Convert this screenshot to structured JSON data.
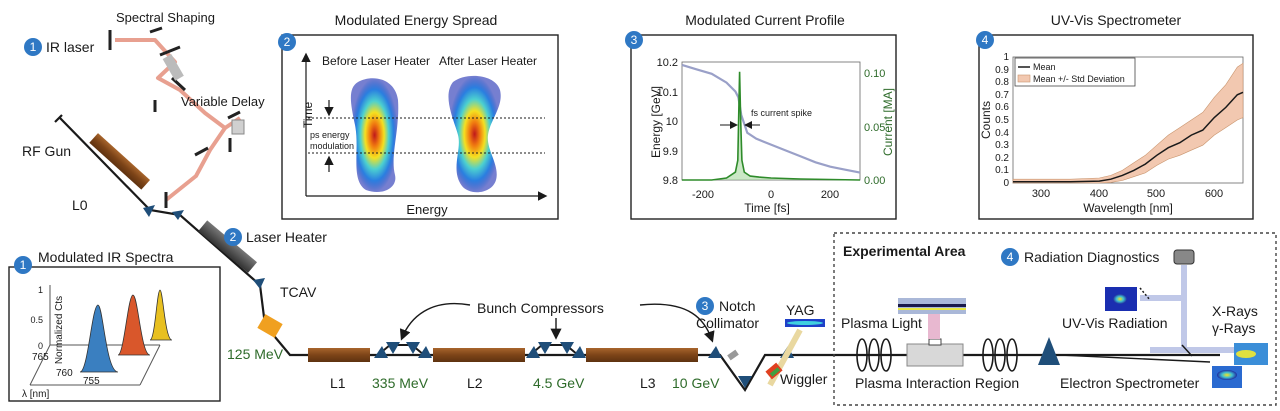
{
  "colors": {
    "beam": "#1a1a1a",
    "laser": "#e8a090",
    "linac": "#8b4e1e",
    "dipole": "#1f4e79",
    "badge": "#2f78c4",
    "energy_text": "#2e6b2a",
    "tcav": "#f0a020",
    "heater": "#555555"
  },
  "beamline": {
    "ir_laser_badge": "1",
    "ir_laser": "IR laser",
    "spectral_shaping": "Spectral Shaping",
    "variable_delay": "Variable Delay",
    "rf_gun": "RF Gun",
    "l0": "L0",
    "laser_heater_badge": "2",
    "laser_heater": "Laser Heater",
    "tcav": "TCAV",
    "e_125": "125 MeV",
    "l1": "L1",
    "e_335": "335 MeV",
    "l2": "L2",
    "e_4_5": "4.5 GeV",
    "l3": "L3",
    "e_10": "10 GeV",
    "bunch_compressors": "Bunch Compressors",
    "notch_badge": "3",
    "notch": "Notch",
    "collimator": "Collimator",
    "yag": "YAG",
    "wiggler": "Wiggler",
    "experimental_area": "Experimental Area",
    "plasma_light": "Plasma Light",
    "plasma_region": "Plasma Interaction Region",
    "radiation_badge": "4",
    "radiation_diagnostics": "Radiation Diagnostics",
    "uv_vis_radiation": "UV-Vis Radiation",
    "x_rays": "X-Rays",
    "gamma_rays": "γ-Rays",
    "electron_spectrometer": "Electron Spectrometer"
  },
  "panels": {
    "ir_spectra": {
      "badge": "1",
      "title": "Modulated IR Spectra",
      "ylabel": "Normalized Cts",
      "xlabel": "λ [nm]",
      "yticks": [
        "1",
        "0.5",
        "0"
      ],
      "xticks": [
        "765",
        "760",
        "755"
      ]
    },
    "energy_spread": {
      "badge": "2",
      "title": "Modulated Energy Spread",
      "before": "Before Laser Heater",
      "after": "After Laser Heater",
      "ylabel": "Time",
      "xlabel": "Energy",
      "annotation_line1": "ps energy",
      "annotation_line2": "modulation"
    },
    "current_profile": {
      "badge": "3",
      "title": "Modulated Current Profile",
      "ylabel_left": "Energy [GeV]",
      "ylabel_right": "Current [MA]",
      "xlabel": "Time [fs]",
      "annotation": "fs current spike",
      "yticks_left": [
        "10.2",
        "10.1",
        "10",
        "9.9",
        "9.8"
      ],
      "yticks_right": [
        "0.10",
        "0.05",
        "0.00"
      ],
      "xticks": [
        "-200",
        "0",
        "200"
      ]
    },
    "spectrometer": {
      "badge": "4",
      "title": "UV-Vis Spectrometer",
      "ylabel": "Counts",
      "xlabel": "Wavelength [nm]",
      "legend_mean": "Mean",
      "legend_band": "Mean +/- Std Deviation",
      "yticks": [
        "1",
        "0.9",
        "0.8",
        "0.7",
        "0.6",
        "0.5",
        "0.4",
        "0.3",
        "0.2",
        "0.1",
        "0"
      ],
      "xticks": [
        "300",
        "400",
        "500",
        "600"
      ]
    }
  },
  "chart_data": [
    {
      "type": "line",
      "title": "Modulated Current Profile",
      "xlabel": "Time [fs]",
      "ylabel": "Energy [GeV]",
      "y2label": "Current [MA]",
      "xlim": [
        -300,
        300
      ],
      "ylim": [
        9.8,
        10.2
      ],
      "y2lim": [
        0,
        0.12
      ],
      "series": [
        {
          "name": "",
          "axis": "left",
          "x": [
            -300,
            -250,
            -200,
            -150,
            -120,
            -110,
            -100,
            -80,
            -50,
            0,
            50,
            100,
            150,
            200,
            250,
            300
          ],
          "y": [
            10.19,
            10.175,
            10.16,
            10.13,
            10.1,
            10.08,
            10.02,
            9.96,
            9.94,
            9.92,
            9.9,
            9.88,
            9.86,
            9.845,
            9.835,
            9.825
          ]
        },
        {
          "name": "",
          "axis": "right",
          "x": [
            -300,
            -200,
            -150,
            -120,
            -112,
            -106,
            -102,
            -98,
            -90,
            -70,
            -40,
            0,
            100,
            200,
            300
          ],
          "y": [
            0,
            0,
            0.002,
            0.008,
            0.02,
            0.11,
            0.06,
            0.02,
            0.008,
            0.004,
            0.003,
            0.002,
            0.001,
            0.0005,
            0
          ]
        }
      ]
    },
    {
      "type": "line",
      "title": "UV-Vis Spectrometer",
      "xlabel": "Wavelength [nm]",
      "ylabel": "Counts",
      "xlim": [
        250,
        650
      ],
      "ylim": [
        0,
        1
      ],
      "x": [
        250,
        300,
        350,
        400,
        420,
        440,
        460,
        480,
        500,
        520,
        540,
        560,
        580,
        600,
        620,
        640,
        650
      ],
      "series": [
        {
          "name": "Mean",
          "values": [
            0.01,
            0.01,
            0.01,
            0.015,
            0.03,
            0.06,
            0.1,
            0.15,
            0.22,
            0.28,
            0.32,
            0.38,
            0.42,
            0.52,
            0.6,
            0.7,
            0.72
          ]
        },
        {
          "name": "Mean +/- Std Deviation",
          "upper": [
            0.03,
            0.03,
            0.03,
            0.04,
            0.06,
            0.1,
            0.16,
            0.22,
            0.3,
            0.38,
            0.44,
            0.5,
            0.56,
            0.68,
            0.78,
            0.92,
            0.95
          ],
          "lower": [
            0,
            0,
            0,
            0,
            0.005,
            0.02,
            0.05,
            0.08,
            0.14,
            0.19,
            0.22,
            0.26,
            0.3,
            0.38,
            0.44,
            0.5,
            0.52
          ]
        }
      ]
    },
    {
      "type": "area",
      "title": "Modulated IR Spectra",
      "ylabel": "Normalized Cts",
      "xlabel": "λ [nm]",
      "ylim": [
        0,
        1
      ],
      "series": [
        {
          "name": "",
          "color": "#3a7fc0",
          "peak": 1.0
        },
        {
          "name": "",
          "color": "#d9572b",
          "peak": 1.0
        },
        {
          "name": "",
          "color": "#e8c020",
          "peak": 1.0
        }
      ]
    }
  ]
}
